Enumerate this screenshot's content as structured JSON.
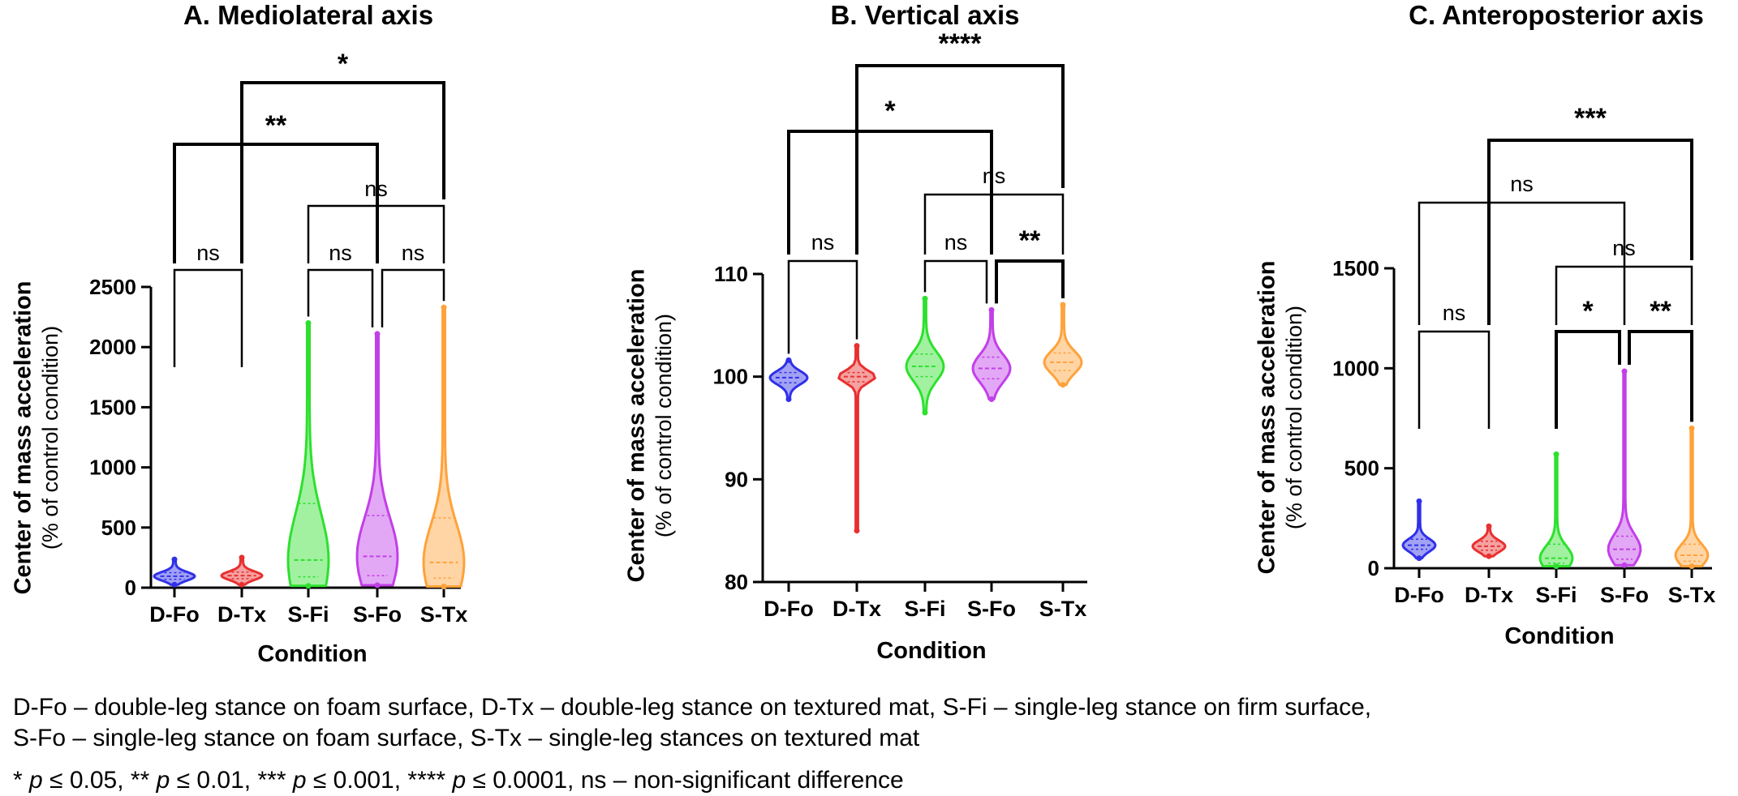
{
  "chart_data": [
    {
      "type": "violin",
      "title": "A. Mediolateral axis",
      "xlabel": "Condition",
      "ylabel": "Center of mass acceleration",
      "ylabel2": "(% of control condition)",
      "ylim": [
        0,
        2500
      ],
      "yticks": [
        0,
        500,
        1000,
        1500,
        2000,
        2500
      ],
      "categories": [
        "D-Fo",
        "D-Tx",
        "S-Fi",
        "S-Fo",
        "S-Tx"
      ],
      "series": [
        {
          "category": "D-Fo",
          "color": "#3030e8",
          "min": 25,
          "max": 235,
          "median": 95,
          "q1": 70,
          "q3": 125
        },
        {
          "category": "D-Tx",
          "color": "#e83030",
          "min": 25,
          "max": 250,
          "median": 100,
          "q1": 75,
          "q3": 130
        },
        {
          "category": "S-Fi",
          "color": "#2ee02e",
          "min": 15,
          "max": 2200,
          "median": 230,
          "q1": 90,
          "q3": 700
        },
        {
          "category": "S-Fo",
          "color": "#c23fe8",
          "min": 20,
          "max": 2110,
          "median": 260,
          "q1": 100,
          "q3": 600
        },
        {
          "category": "S-Tx",
          "color": "#ffa23a",
          "min": 10,
          "max": 2330,
          "median": 210,
          "q1": 80,
          "q3": 580
        }
      ],
      "comparisons": [
        {
          "from": "D-Fo",
          "to": "D-Tx",
          "label": "ns"
        },
        {
          "from": "S-Fi",
          "to": "S-Fo",
          "label": "ns"
        },
        {
          "from": "S-Fo",
          "to": "S-Tx",
          "label": "ns"
        },
        {
          "from": "S-Fi",
          "to": "S-Tx",
          "label": "ns"
        },
        {
          "from": "D-Fo",
          "to": "S-Fo",
          "label": "**"
        },
        {
          "from": "D-Tx",
          "to": "S-Tx",
          "label": "*"
        }
      ]
    },
    {
      "type": "violin",
      "title": "B. Vertical axis",
      "xlabel": "Condition",
      "ylabel": "Center of mass acceleration",
      "ylabel2": "(% of control condition)",
      "ylim": [
        80,
        110
      ],
      "yticks": [
        80,
        90,
        100,
        110
      ],
      "categories": [
        "D-Fo",
        "D-Tx",
        "S-Fi",
        "S-Fo",
        "S-Tx"
      ],
      "series": [
        {
          "category": "D-Fo",
          "color": "#3030e8",
          "min": 97.8,
          "max": 101.6,
          "median": 99.9,
          "q1": 99.4,
          "q3": 100.4
        },
        {
          "category": "D-Tx",
          "color": "#e83030",
          "min": 85,
          "max": 103,
          "median": 100,
          "q1": 99.5,
          "q3": 100.4
        },
        {
          "category": "S-Fi",
          "color": "#2ee02e",
          "min": 96.5,
          "max": 107.6,
          "median": 101,
          "q1": 100,
          "q3": 102.2
        },
        {
          "category": "S-Fo",
          "color": "#c23fe8",
          "min": 97.8,
          "max": 106.5,
          "median": 100.8,
          "q1": 99.8,
          "q3": 101.9
        },
        {
          "category": "S-Tx",
          "color": "#ffa23a",
          "min": 99.2,
          "max": 107,
          "median": 101.4,
          "q1": 100.6,
          "q3": 102.3
        }
      ],
      "comparisons": [
        {
          "from": "D-Fo",
          "to": "D-Tx",
          "label": "ns"
        },
        {
          "from": "S-Fi",
          "to": "S-Fo",
          "label": "ns"
        },
        {
          "from": "S-Fo",
          "to": "S-Tx",
          "label": "**"
        },
        {
          "from": "S-Fi",
          "to": "S-Tx",
          "label": "ns"
        },
        {
          "from": "D-Fo",
          "to": "S-Fo",
          "label": "*"
        },
        {
          "from": "D-Tx",
          "to": "S-Tx",
          "label": "****"
        }
      ]
    },
    {
      "type": "violin",
      "title": "C. Anteroposterior axis",
      "xlabel": "Condition",
      "ylabel": "Center of mass acceleration",
      "ylabel2": "(% of control condition)",
      "ylim": [
        0,
        1500
      ],
      "yticks": [
        0,
        500,
        1000,
        1500
      ],
      "categories": [
        "D-Fo",
        "D-Tx",
        "S-Fi",
        "S-Fo",
        "S-Tx"
      ],
      "series": [
        {
          "category": "D-Fo",
          "color": "#3030e8",
          "min": 50,
          "max": 335,
          "median": 115,
          "q1": 95,
          "q3": 145
        },
        {
          "category": "D-Tx",
          "color": "#e83030",
          "min": 60,
          "max": 210,
          "median": 110,
          "q1": 90,
          "q3": 135
        },
        {
          "category": "S-Fi",
          "color": "#2ee02e",
          "min": 10,
          "max": 570,
          "median": 50,
          "q1": 25,
          "q3": 120
        },
        {
          "category": "S-Fo",
          "color": "#c23fe8",
          "min": 15,
          "max": 985,
          "median": 95,
          "q1": 45,
          "q3": 160
        },
        {
          "category": "S-Tx",
          "color": "#ffa23a",
          "min": 10,
          "max": 700,
          "median": 65,
          "q1": 35,
          "q3": 120
        }
      ],
      "comparisons": [
        {
          "from": "D-Fo",
          "to": "D-Tx",
          "label": "ns"
        },
        {
          "from": "S-Fi",
          "to": "S-Fo",
          "label": "*"
        },
        {
          "from": "S-Fo",
          "to": "S-Tx",
          "label": "**"
        },
        {
          "from": "S-Fi",
          "to": "S-Tx",
          "label": "ns"
        },
        {
          "from": "D-Fo",
          "to": "S-Fo",
          "label": "ns"
        },
        {
          "from": "D-Tx",
          "to": "S-Tx",
          "label": "***"
        }
      ]
    }
  ],
  "caption": {
    "abbr_line1": "D-Fo – double-leg stance on foam surface, D-Tx – double-leg stance on textured mat, S-Fi – single-leg stance on firm surface,",
    "abbr_line2": "S-Fo – single-leg stance on foam surface, S-Tx – single-leg stances on textured mat",
    "sig": {
      "s1a": "* ",
      "p1": "p",
      "s1b": " ≤ 0.05, ** ",
      "p2": "p",
      "s2b": " ≤ 0.01, *** ",
      "p3": "p",
      "s3b": " ≤ 0.001, **** ",
      "p4": "p",
      "s4b": " ≤ 0.0001, ns – non-significant difference"
    }
  }
}
